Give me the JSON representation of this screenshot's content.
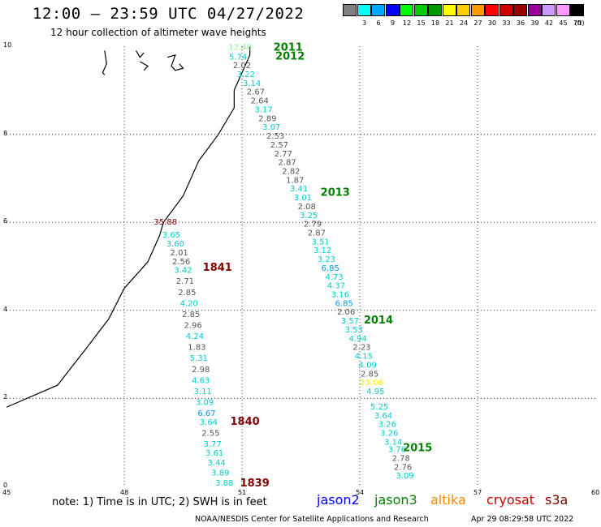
{
  "title": "12:00 – 23:59 UTC 04/27/2022",
  "subtitle": "12 hour collection of altimeter wave heights",
  "colorbar": {
    "unit": "(ft)",
    "swatches": [
      {
        "label": "",
        "color": "#808080"
      },
      {
        "label": "3",
        "color": "#00ffff"
      },
      {
        "label": "6",
        "color": "#00aaff"
      },
      {
        "label": "9",
        "color": "#0000ff"
      },
      {
        "label": "12",
        "color": "#00ff00"
      },
      {
        "label": "15",
        "color": "#00cc00"
      },
      {
        "label": "18",
        "color": "#009900"
      },
      {
        "label": "21",
        "color": "#ffff00"
      },
      {
        "label": "24",
        "color": "#ffcc00"
      },
      {
        "label": "27",
        "color": "#ff9900"
      },
      {
        "label": "30",
        "color": "#ff0000"
      },
      {
        "label": "33",
        "color": "#cc0000"
      },
      {
        "label": "36",
        "color": "#990000"
      },
      {
        "label": "39",
        "color": "#990099"
      },
      {
        "label": "42",
        "color": "#cc99ff"
      },
      {
        "label": "45",
        "color": "#ff99ff"
      },
      {
        "label": "70",
        "color": "#000000"
      }
    ]
  },
  "axes": {
    "x_ticks": [
      "45",
      "48",
      "51",
      "54",
      "57",
      "60"
    ],
    "y_ticks": [
      "0",
      "2",
      "4",
      "6",
      "8",
      "10"
    ]
  },
  "map_extent": {
    "lon": [
      45,
      60
    ],
    "lat": [
      0,
      10
    ]
  },
  "coastline": [
    [
      45,
      1.8
    ],
    [
      46.3,
      2.3
    ],
    [
      47,
      3.1
    ],
    [
      47.6,
      3.8
    ],
    [
      48.0,
      4.5
    ],
    [
      48.6,
      5.1
    ],
    [
      48.9,
      5.7
    ],
    [
      49.0,
      6.0
    ],
    [
      49.5,
      6.6
    ],
    [
      49.9,
      7.4
    ],
    [
      50.4,
      8.0
    ],
    [
      50.8,
      8.6
    ],
    [
      50.8,
      9.0
    ],
    [
      51.0,
      9.4
    ],
    [
      51.2,
      9.8
    ],
    [
      51.2,
      10.0
    ]
  ],
  "islands": [
    [
      [
        47.5,
        9.9
      ],
      [
        47.55,
        9.6
      ],
      [
        47.45,
        9.4
      ],
      [
        47.5,
        9.35
      ]
    ],
    [
      [
        48.3,
        9.9
      ],
      [
        48.4,
        9.75
      ],
      [
        48.5,
        9.85
      ]
    ],
    [
      [
        48.4,
        9.65
      ],
      [
        48.6,
        9.55
      ],
      [
        48.5,
        9.45
      ]
    ],
    [
      [
        49.1,
        9.75
      ],
      [
        49.3,
        9.8
      ],
      [
        49.2,
        9.55
      ],
      [
        49.3,
        9.45
      ],
      [
        49.5,
        9.5
      ],
      [
        49.4,
        9.6
      ]
    ]
  ],
  "passes": [
    {
      "label": "2011",
      "color": "#008000",
      "lon": 51.8,
      "lat": 9.9
    },
    {
      "label": "2012",
      "color": "#008000",
      "lon": 51.85,
      "lat": 9.7
    },
    {
      "label": "2013",
      "color": "#008000",
      "lon": 53.0,
      "lat": 6.6
    },
    {
      "label": "1841",
      "color": "#800000",
      "lon": 50.0,
      "lat": 4.9
    },
    {
      "label": "2014",
      "color": "#008000",
      "lon": 54.1,
      "lat": 3.7
    },
    {
      "label": "1840",
      "color": "#800000",
      "lon": 50.7,
      "lat": 1.4
    },
    {
      "label": "2015",
      "color": "#008000",
      "lon": 55.1,
      "lat": 0.8
    },
    {
      "label": "1839",
      "color": "#800000",
      "lon": 50.95,
      "lat": 0.0
    }
  ],
  "observations": [
    {
      "v": "12.48",
      "c": "#90ee90",
      "lon": 50.95,
      "lat": 9.92
    },
    {
      "v": "5.74",
      "c": "#00cccc",
      "lon": 50.9,
      "lat": 9.7
    },
    {
      "v": "2.02",
      "c": "#555555",
      "lon": 51.0,
      "lat": 9.5
    },
    {
      "v": "3.22",
      "c": "#00cccc",
      "lon": 51.1,
      "lat": 9.3
    },
    {
      "v": "3.14",
      "c": "#00cccc",
      "lon": 51.25,
      "lat": 9.1
    },
    {
      "v": "2.67",
      "c": "#555555",
      "lon": 51.35,
      "lat": 8.9
    },
    {
      "v": "2.64",
      "c": "#555555",
      "lon": 51.45,
      "lat": 8.7
    },
    {
      "v": "3.17",
      "c": "#00cccc",
      "lon": 51.55,
      "lat": 8.5
    },
    {
      "v": "2.89",
      "c": "#555555",
      "lon": 51.65,
      "lat": 8.3
    },
    {
      "v": "3.07",
      "c": "#00cccc",
      "lon": 51.75,
      "lat": 8.1
    },
    {
      "v": "2.53",
      "c": "#555555",
      "lon": 51.85,
      "lat": 7.9
    },
    {
      "v": "2.57",
      "c": "#555555",
      "lon": 51.95,
      "lat": 7.7
    },
    {
      "v": "2.77",
      "c": "#555555",
      "lon": 52.05,
      "lat": 7.5
    },
    {
      "v": "2.87",
      "c": "#555555",
      "lon": 52.15,
      "lat": 7.3
    },
    {
      "v": "2.82",
      "c": "#555555",
      "lon": 52.25,
      "lat": 7.1
    },
    {
      "v": "1.87",
      "c": "#555555",
      "lon": 52.35,
      "lat": 6.9
    },
    {
      "v": "3.41",
      "c": "#00cccc",
      "lon": 52.45,
      "lat": 6.7
    },
    {
      "v": "3.01",
      "c": "#00cccc",
      "lon": 52.55,
      "lat": 6.5
    },
    {
      "v": "2.08",
      "c": "#555555",
      "lon": 52.65,
      "lat": 6.3
    },
    {
      "v": "3.25",
      "c": "#00cccc",
      "lon": 52.7,
      "lat": 6.1
    },
    {
      "v": "2.79",
      "c": "#555555",
      "lon": 52.8,
      "lat": 5.9
    },
    {
      "v": "2.87",
      "c": "#555555",
      "lon": 52.9,
      "lat": 5.7
    },
    {
      "v": "3.51",
      "c": "#00cccc",
      "lon": 53.0,
      "lat": 5.5
    },
    {
      "v": "3.12",
      "c": "#00cccc",
      "lon": 53.05,
      "lat": 5.3
    },
    {
      "v": "3.23",
      "c": "#00cccc",
      "lon": 53.15,
      "lat": 5.1
    },
    {
      "v": "6.85",
      "c": "#0099ee",
      "lon": 53.25,
      "lat": 4.9
    },
    {
      "v": "4.73",
      "c": "#00cccc",
      "lon": 53.35,
      "lat": 4.7
    },
    {
      "v": "4.37",
      "c": "#00cccc",
      "lon": 53.4,
      "lat": 4.5
    },
    {
      "v": "3.16",
      "c": "#00cccc",
      "lon": 53.5,
      "lat": 4.3
    },
    {
      "v": "6.85",
      "c": "#0099ee",
      "lon": 53.6,
      "lat": 4.1
    },
    {
      "v": "2.06",
      "c": "#555555",
      "lon": 53.65,
      "lat": 3.9
    },
    {
      "v": "3.57",
      "c": "#00cccc",
      "lon": 53.75,
      "lat": 3.7
    },
    {
      "v": "3.53",
      "c": "#00cccc",
      "lon": 53.85,
      "lat": 3.5
    },
    {
      "v": "4.94",
      "c": "#00cccc",
      "lon": 53.95,
      "lat": 3.3
    },
    {
      "v": "2.23",
      "c": "#555555",
      "lon": 54.05,
      "lat": 3.1
    },
    {
      "v": "4.15",
      "c": "#00cccc",
      "lon": 54.1,
      "lat": 2.9
    },
    {
      "v": "4.09",
      "c": "#00cccc",
      "lon": 54.2,
      "lat": 2.7
    },
    {
      "v": "2.85",
      "c": "#555555",
      "lon": 54.25,
      "lat": 2.5
    },
    {
      "v": "23.06",
      "c": "#ffee00",
      "lon": 54.3,
      "lat": 2.3
    },
    {
      "v": "4.95",
      "c": "#00cccc",
      "lon": 54.4,
      "lat": 2.1
    },
    {
      "v": "5.25",
      "c": "#00cccc",
      "lon": 54.5,
      "lat": 1.75
    },
    {
      "v": "3.64",
      "c": "#00cccc",
      "lon": 54.6,
      "lat": 1.55
    },
    {
      "v": "3.26",
      "c": "#00cccc",
      "lon": 54.7,
      "lat": 1.35
    },
    {
      "v": "3.26",
      "c": "#00cccc",
      "lon": 54.75,
      "lat": 1.15
    },
    {
      "v": "3.14",
      "c": "#00cccc",
      "lon": 54.85,
      "lat": 0.95
    },
    {
      "v": "3.76",
      "c": "#00cccc",
      "lon": 54.95,
      "lat": 0.78
    },
    {
      "v": "2.78",
      "c": "#555555",
      "lon": 55.05,
      "lat": 0.58
    },
    {
      "v": "2.76",
      "c": "#555555",
      "lon": 55.1,
      "lat": 0.38
    },
    {
      "v": "3.09",
      "c": "#00cccc",
      "lon": 55.15,
      "lat": 0.18
    },
    {
      "v": "35.88",
      "c": "#800000",
      "lon": 49.05,
      "lat": 5.95
    },
    {
      "v": "3.65",
      "c": "#00cccc",
      "lon": 49.2,
      "lat": 5.65
    },
    {
      "v": "3.60",
      "c": "#00cccc",
      "lon": 49.3,
      "lat": 5.45
    },
    {
      "v": "2.01",
      "c": "#555555",
      "lon": 49.4,
      "lat": 5.25
    },
    {
      "v": "2.56",
      "c": "#555555",
      "lon": 49.45,
      "lat": 5.05
    },
    {
      "v": "3.42",
      "c": "#00cccc",
      "lon": 49.5,
      "lat": 4.85
    },
    {
      "v": "2.71",
      "c": "#555555",
      "lon": 49.55,
      "lat": 4.6
    },
    {
      "v": "2.85",
      "c": "#555555",
      "lon": 49.6,
      "lat": 4.35
    },
    {
      "v": "4.20",
      "c": "#00cccc",
      "lon": 49.65,
      "lat": 4.1
    },
    {
      "v": "2.85",
      "c": "#555555",
      "lon": 49.7,
      "lat": 3.85
    },
    {
      "v": "2.96",
      "c": "#555555",
      "lon": 49.75,
      "lat": 3.6
    },
    {
      "v": "4.24",
      "c": "#00cccc",
      "lon": 49.8,
      "lat": 3.35
    },
    {
      "v": "1.83",
      "c": "#555555",
      "lon": 49.85,
      "lat": 3.1
    },
    {
      "v": "5.31",
      "c": "#00cccc",
      "lon": 49.9,
      "lat": 2.85
    },
    {
      "v": "2.98",
      "c": "#555555",
      "lon": 49.95,
      "lat": 2.6
    },
    {
      "v": "4.63",
      "c": "#00cccc",
      "lon": 49.95,
      "lat": 2.35
    },
    {
      "v": "3.11",
      "c": "#00cccc",
      "lon": 50.0,
      "lat": 2.1
    },
    {
      "v": "3.09",
      "c": "#00cccc",
      "lon": 50.05,
      "lat": 1.85
    },
    {
      "v": "6.67",
      "c": "#0099ee",
      "lon": 50.1,
      "lat": 1.6
    },
    {
      "v": "3.64",
      "c": "#00cccc",
      "lon": 50.15,
      "lat": 1.4
    },
    {
      "v": "2.55",
      "c": "#555555",
      "lon": 50.2,
      "lat": 1.15
    },
    {
      "v": "3.77",
      "c": "#00cccc",
      "lon": 50.25,
      "lat": 0.9
    },
    {
      "v": "3.61",
      "c": "#00cccc",
      "lon": 50.3,
      "lat": 0.7
    },
    {
      "v": "3.44",
      "c": "#00cccc",
      "lon": 50.35,
      "lat": 0.48
    },
    {
      "v": "3.89",
      "c": "#00cccc",
      "lon": 50.45,
      "lat": 0.25
    },
    {
      "v": "3.88",
      "c": "#00cccc",
      "lon": 50.55,
      "lat": 0.02
    }
  ],
  "note": "note:  1) Time is in UTC;  2) SWH is in feet",
  "satellites": [
    {
      "name": "jason2",
      "color": "#0000ff"
    },
    {
      "name": "jason3",
      "color": "#008000"
    },
    {
      "name": "altika",
      "color": "#ff8800"
    },
    {
      "name": "cryosat",
      "color": "#cc0000"
    },
    {
      "name": "s3a",
      "color": "#800000"
    }
  ],
  "footer_left": "NOAA/NESDIS Center for Satellite Applications and Research",
  "footer_right": "Apr 29 08:29:58 UTC 2022"
}
